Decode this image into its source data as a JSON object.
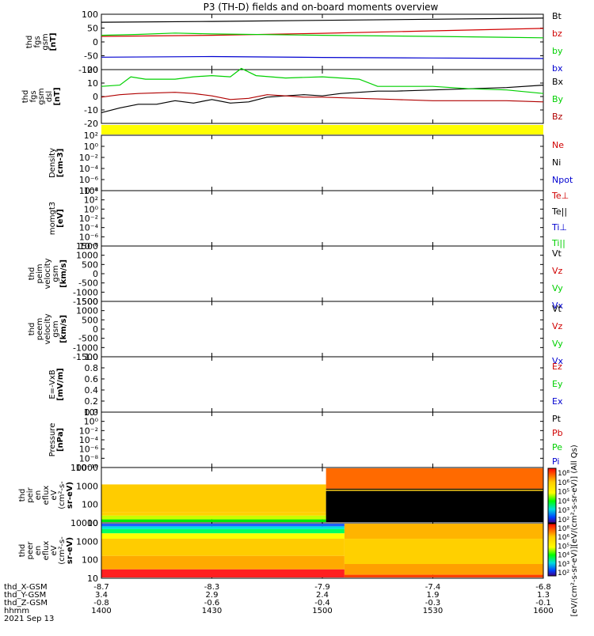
{
  "title": "P3 (TH-D) fields and on-board moments overview",
  "chart_data": [
    {
      "type": "line",
      "panel": "fgs_gsm_nT",
      "ylabel": [
        "thd",
        "fgs",
        "gsm",
        "[nT]"
      ],
      "ylim": [
        -100,
        100
      ],
      "yticks": [
        "100",
        "50",
        "0",
        "-50",
        "-100"
      ],
      "series": [
        {
          "name": "Bt",
          "color": "#000000",
          "points": [
            [
              1400,
              71
            ],
            [
              1430,
              74
            ],
            [
              1500,
              78
            ],
            [
              1530,
              82
            ],
            [
              1600,
              86
            ]
          ]
        },
        {
          "name": "bz",
          "color": "#d00000",
          "points": [
            [
              1400,
              20
            ],
            [
              1430,
              24
            ],
            [
              1500,
              31
            ],
            [
              1530,
              40
            ],
            [
              1600,
              49
            ]
          ]
        },
        {
          "name": "by",
          "color": "#00d000",
          "points": [
            [
              1400,
              24
            ],
            [
              1410,
              27
            ],
            [
              1420,
              32
            ],
            [
              1430,
              29
            ],
            [
              1500,
              24
            ],
            [
              1530,
              20
            ],
            [
              1600,
              15
            ]
          ]
        },
        {
          "name": "bx",
          "color": "#0000d0",
          "points": [
            [
              1400,
              -55
            ],
            [
              1430,
              -53
            ],
            [
              1500,
              -56
            ],
            [
              1530,
              -58
            ],
            [
              1600,
              -60
            ]
          ]
        }
      ]
    },
    {
      "type": "line",
      "panel": "fgs_gsm_dsl_nT",
      "ylabel": [
        "thd",
        "fgs",
        "gsm",
        "dsl",
        "[nT]"
      ],
      "ylim": [
        -25,
        20
      ],
      "yticks": [
        "20",
        "10",
        "0",
        "-10",
        "-20"
      ],
      "series": [
        {
          "name": "Bx",
          "color": "#000000",
          "points": [
            [
              1400,
              -16
            ],
            [
              1405,
              -12
            ],
            [
              1410,
              -9
            ],
            [
              1415,
              -9
            ],
            [
              1420,
              -6
            ],
            [
              1425,
              -8
            ],
            [
              1430,
              -5
            ],
            [
              1435,
              -8
            ],
            [
              1440,
              -7
            ],
            [
              1445,
              -3
            ],
            [
              1450,
              -2
            ],
            [
              1455,
              -1
            ],
            [
              1500,
              -2
            ],
            [
              1505,
              0
            ],
            [
              1510,
              1
            ],
            [
              1515,
              2
            ],
            [
              1520,
              2
            ],
            [
              1530,
              3
            ],
            [
              1540,
              4
            ],
            [
              1550,
              5
            ],
            [
              1600,
              7
            ]
          ]
        },
        {
          "name": "By",
          "color": "#00d000",
          "points": [
            [
              1400,
              6
            ],
            [
              1405,
              7
            ],
            [
              1408,
              14
            ],
            [
              1412,
              12
            ],
            [
              1420,
              12
            ],
            [
              1425,
              14
            ],
            [
              1430,
              15
            ],
            [
              1435,
              14
            ],
            [
              1438,
              21
            ],
            [
              1442,
              15
            ],
            [
              1450,
              13
            ],
            [
              1500,
              14
            ],
            [
              1505,
              13
            ],
            [
              1510,
              12
            ],
            [
              1515,
              6
            ],
            [
              1520,
              6
            ],
            [
              1530,
              6
            ],
            [
              1540,
              4
            ],
            [
              1550,
              3
            ],
            [
              1600,
              0
            ]
          ]
        },
        {
          "name": "Bz",
          "color": "#b00000",
          "points": [
            [
              1400,
              -3
            ],
            [
              1405,
              -1
            ],
            [
              1410,
              0
            ],
            [
              1420,
              1
            ],
            [
              1425,
              0
            ],
            [
              1430,
              -2
            ],
            [
              1435,
              -5
            ],
            [
              1440,
              -4
            ],
            [
              1445,
              -1
            ],
            [
              1450,
              -2
            ],
            [
              1455,
              -3
            ],
            [
              1500,
              -3
            ],
            [
              1510,
              -4
            ],
            [
              1520,
              -5
            ],
            [
              1530,
              -6
            ],
            [
              1540,
              -6
            ],
            [
              1550,
              -6
            ],
            [
              1600,
              -7
            ]
          ]
        }
      ]
    },
    {
      "type": "heatmap",
      "panel": "flag_bar",
      "color": "#ffff00"
    },
    {
      "type": "line",
      "panel": "density",
      "ylabel": [
        "Density",
        "[cm-3]"
      ],
      "ylim_log10": [
        -8,
        2
      ],
      "yticks": [
        "10²",
        "10⁰",
        "10⁻²",
        "10⁻⁴",
        "10⁻⁶",
        "10⁻⁸"
      ],
      "series": [
        {
          "name": "Ne",
          "color": "#d00000",
          "points": []
        },
        {
          "name": "Ni",
          "color": "#000000",
          "points": []
        },
        {
          "name": "Npot",
          "color": "#0000d0",
          "points": []
        }
      ]
    },
    {
      "type": "line",
      "panel": "temperature",
      "ylabel": [
        "momgt3",
        "[eV]"
      ],
      "ylim_log10": [
        -8,
        4
      ],
      "yticks": [
        "10⁴",
        "10²",
        "10⁰",
        "10⁻²",
        "10⁻⁴",
        "10⁻⁶",
        "10⁻⁸"
      ],
      "series": [
        {
          "name": "Te⊥",
          "color": "#d00000",
          "points": []
        },
        {
          "name": "Te||",
          "color": "#000000",
          "points": []
        },
        {
          "name": "Ti⊥",
          "color": "#0000d0",
          "points": []
        },
        {
          "name": "Ti||",
          "color": "#00d000",
          "points": []
        }
      ]
    },
    {
      "type": "line",
      "panel": "peim_velocity",
      "ylabel": [
        "thd",
        "peim",
        "velocity",
        "gsm",
        "[km/s]"
      ],
      "ylim": [
        -1500,
        1500
      ],
      "yticks": [
        "1500",
        "1000",
        "500",
        "0",
        "-500",
        "-1000",
        "-1500"
      ],
      "series": [
        {
          "name": "Vt",
          "color": "#000000",
          "points": []
        },
        {
          "name": "Vz",
          "color": "#d00000",
          "points": []
        },
        {
          "name": "Vy",
          "color": "#00d000",
          "points": []
        },
        {
          "name": "Vx",
          "color": "#0000d0",
          "points": []
        }
      ]
    },
    {
      "type": "line",
      "panel": "peem_velocity",
      "ylabel": [
        "thd",
        "peem",
        "velocity",
        "gsm",
        "[km/s]"
      ],
      "ylim": [
        -1500,
        1500
      ],
      "yticks": [
        "1500",
        "1000",
        "500",
        "0",
        "-500",
        "-1000",
        "-1500"
      ],
      "series": [
        {
          "name": "Vt",
          "color": "#000000",
          "points": []
        },
        {
          "name": "Vz",
          "color": "#d00000",
          "points": []
        },
        {
          "name": "Vy",
          "color": "#00d000",
          "points": []
        },
        {
          "name": "Vx",
          "color": "#0000d0",
          "points": []
        }
      ]
    },
    {
      "type": "line",
      "panel": "efield",
      "ylabel": [
        "E=-VxB",
        "[mV/m]"
      ],
      "ylim": [
        0,
        1
      ],
      "yticks": [
        "1.0",
        "0.8",
        "0.6",
        "0.4",
        "0.2",
        "0.0"
      ],
      "series": [
        {
          "name": "Ez",
          "color": "#d00000",
          "points": []
        },
        {
          "name": "Ey",
          "color": "#00d000",
          "points": []
        },
        {
          "name": "Ex",
          "color": "#0000d0",
          "points": []
        }
      ]
    },
    {
      "type": "line",
      "panel": "pressure",
      "ylabel": [
        "Pressure",
        "[nPa]"
      ],
      "ylim_log10": [
        -10,
        2
      ],
      "yticks": [
        "10²",
        "10⁰",
        "10⁻²",
        "10⁻⁴",
        "10⁻⁶",
        "10⁻⁸",
        "10⁻¹⁰"
      ],
      "series": [
        {
          "name": "Pt",
          "color": "#000000",
          "points": []
        },
        {
          "name": "Pb",
          "color": "#d00000",
          "points": []
        },
        {
          "name": "Pe",
          "color": "#00d000",
          "points": []
        },
        {
          "name": "Pi",
          "color": "#0000d0",
          "points": []
        }
      ]
    },
    {
      "type": "heatmap",
      "panel": "peir_en_eflux",
      "ylabel": [
        "thd",
        "peir",
        "en",
        "eflux",
        "eV",
        "(cm²-s-",
        "sr-eV)"
      ],
      "ylim_log10": [
        0.5,
        4.3
      ],
      "yticks": [
        "10000",
        "1000",
        "100",
        "10"
      ],
      "segments": [
        {
          "x": [
            1400,
            1501
          ],
          "rows": [
            [
              0.3,
              0.82,
              "#ffcc00"
            ],
            [
              0.82,
              0.88,
              "#ffd200"
            ],
            [
              0.88,
              0.95,
              "#c8ff00"
            ],
            [
              0.95,
              1.0,
              "#00e800"
            ]
          ]
        },
        {
          "x": [
            1501,
            1600
          ],
          "rows": [
            [
              0.0,
              0.38,
              "#ff6a00"
            ],
            [
              0.38,
              0.4,
              "#000000"
            ],
            [
              0.4,
              0.42,
              "#ffcc00"
            ],
            [
              0.42,
              1.0,
              "#000000"
            ]
          ]
        }
      ]
    },
    {
      "type": "heatmap",
      "panel": "peer_en_eflux",
      "ylabel": [
        "thd",
        "peer",
        "en",
        "eflux",
        "eV",
        "(cm²-s-",
        "sr-eV)"
      ],
      "ylim_log10": [
        0.5,
        4.3
      ],
      "yticks": [
        "10000",
        "1000",
        "100",
        "10"
      ],
      "segments": [
        {
          "x": [
            1400,
            1506
          ],
          "rows": [
            [
              0.0,
              0.05,
              "#2060ff"
            ],
            [
              0.05,
              0.1,
              "#00e0e0"
            ],
            [
              0.1,
              0.18,
              "#00ff60"
            ],
            [
              0.18,
              0.28,
              "#ffff00"
            ],
            [
              0.28,
              0.6,
              "#ffcc00"
            ],
            [
              0.6,
              0.85,
              "#ffaa00"
            ],
            [
              0.85,
              1.0,
              "#ff2020"
            ]
          ]
        },
        {
          "x": [
            1506,
            1600
          ],
          "rows": [
            [
              0.0,
              0.28,
              "#ffb400"
            ],
            [
              0.28,
              0.75,
              "#ffd000"
            ],
            [
              0.75,
              0.95,
              "#ffa000"
            ],
            [
              0.95,
              1.0,
              "#ff4000"
            ]
          ]
        }
      ]
    }
  ],
  "colorbars": [
    {
      "label": "[eV/(cm²-s-sr-eV)] (All Qs)",
      "ticks": [
        "10⁸",
        "10⁶",
        "10⁵",
        "10⁴",
        "10³",
        "10²"
      ]
    },
    {
      "label": "[eV/(cm²-s-sr-eV)]",
      "ticks": [
        "10⁸",
        "10⁶",
        "10⁵",
        "10⁴",
        "10³",
        "10²"
      ]
    }
  ],
  "xaxis": {
    "ticks_x": [
      1400,
      1430,
      1500,
      1530,
      1600
    ],
    "rows": [
      {
        "label": "thd_X-GSM",
        "values": [
          "-8.7",
          "-8.3",
          "-7.9",
          "-7.4",
          "-6.8"
        ]
      },
      {
        "label": "thd_Y-GSM",
        "values": [
          "3.4",
          "2.9",
          "2.4",
          "1.9",
          "1.3"
        ]
      },
      {
        "label": "thd_Z-GSM",
        "values": [
          "-0.8",
          "-0.6",
          "-0.4",
          "-0.3",
          "-0.1"
        ]
      },
      {
        "label": "hhmm",
        "values": [
          "1400",
          "1430",
          "1500",
          "1530",
          "1600"
        ]
      }
    ],
    "date": "2021 Sep 13"
  }
}
